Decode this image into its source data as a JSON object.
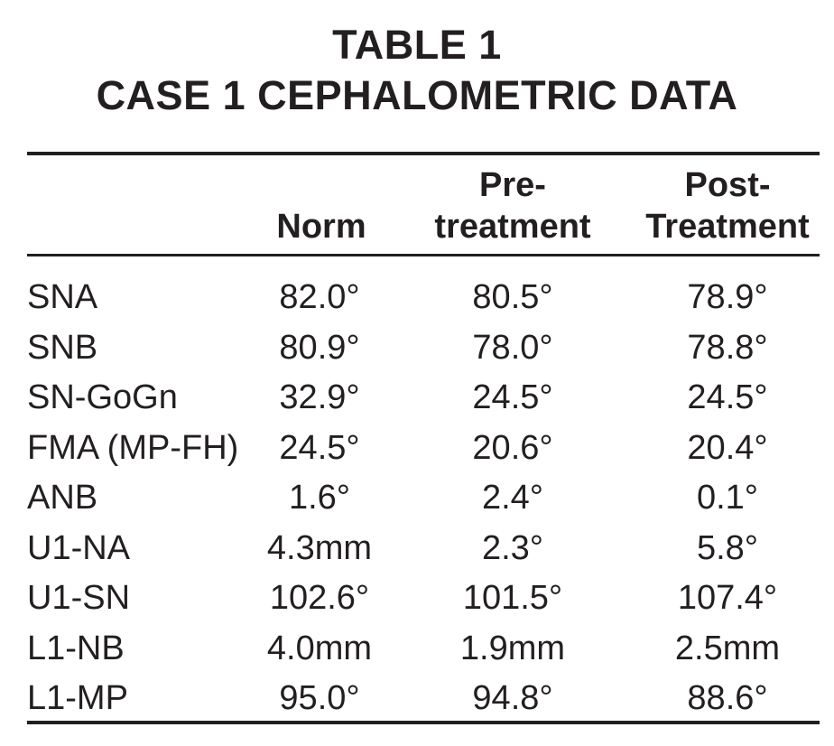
{
  "title": {
    "line1": "TABLE 1",
    "line2": "CASE 1 CEPHALOMETRIC DATA"
  },
  "table": {
    "headers": {
      "label": "",
      "norm": [
        "",
        "Norm"
      ],
      "pre": [
        "Pre-",
        "treatment"
      ],
      "post": [
        "Post-",
        "Treatment"
      ]
    },
    "rows": [
      {
        "label": "SNA",
        "norm": "82.0°",
        "pre": "80.5°",
        "post": "78.9°"
      },
      {
        "label": "SNB",
        "norm": "80.9°",
        "pre": "78.0°",
        "post": "78.8°"
      },
      {
        "label": "SN-GoGn",
        "norm": "32.9°",
        "pre": "24.5°",
        "post": "24.5°"
      },
      {
        "label": "FMA (MP-FH)",
        "norm": "24.5°",
        "pre": "20.6°",
        "post": "20.4°"
      },
      {
        "label": "ANB",
        "norm": "1.6°",
        "pre": "2.4°",
        "post": "0.1°"
      },
      {
        "label": "U1-NA",
        "norm": "4.3mm",
        "pre": "2.3°",
        "post": "5.8°"
      },
      {
        "label": "U1-SN",
        "norm": "102.6°",
        "pre": "101.5°",
        "post": "107.4°"
      },
      {
        "label": "L1-NB",
        "norm": "4.0mm",
        "pre": "1.9mm",
        "post": "2.5mm"
      },
      {
        "label": "L1-MP",
        "norm": "95.0°",
        "pre": "94.8°",
        "post": "88.6°"
      }
    ]
  }
}
